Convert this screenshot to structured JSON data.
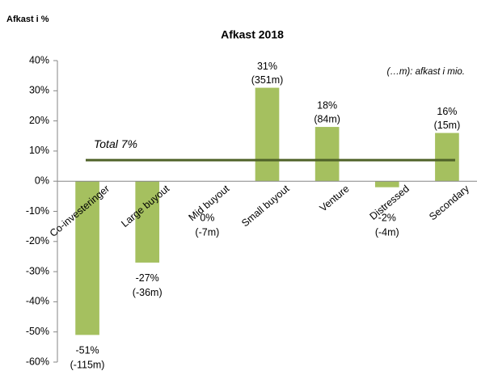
{
  "chart_data": {
    "type": "bar",
    "title": "Afkast 2018",
    "ylabel": "Afkast i %",
    "note": "(…m): afkast i mio.",
    "categories": [
      "Co-investeringer",
      "Large buyout",
      "Mid buyout",
      "Small buyout",
      "Venture",
      "Distressed",
      "Secondary"
    ],
    "values": [
      -51,
      -27,
      0,
      31,
      18,
      -2,
      16
    ],
    "value_labels": [
      "-51%",
      "-27%",
      "0%",
      "31%",
      "18%",
      "-2%",
      "16%"
    ],
    "amount_labels": [
      "(-115m)",
      "(-36m)",
      "(-7m)",
      "(351m)",
      "(84m)",
      "(-4m)",
      "(15m)"
    ],
    "color": "#a5c05f",
    "total": {
      "value": 7,
      "label": "Total 7%",
      "color": "#4f6228"
    },
    "ylim": [
      -60,
      40
    ],
    "yticks": [
      {
        "value": -60,
        "label": "-60%"
      },
      {
        "value": -50,
        "label": "-50%"
      },
      {
        "value": -40,
        "label": "-40%"
      },
      {
        "value": -30,
        "label": "-30%"
      },
      {
        "value": -20,
        "label": "-20%"
      },
      {
        "value": -10,
        "label": "-10%"
      },
      {
        "value": 0,
        "label": "0%"
      },
      {
        "value": 10,
        "label": "10%"
      },
      {
        "value": 20,
        "label": "20%"
      },
      {
        "value": 30,
        "label": "30%"
      },
      {
        "value": 40,
        "label": "40%"
      }
    ],
    "grid": false
  }
}
